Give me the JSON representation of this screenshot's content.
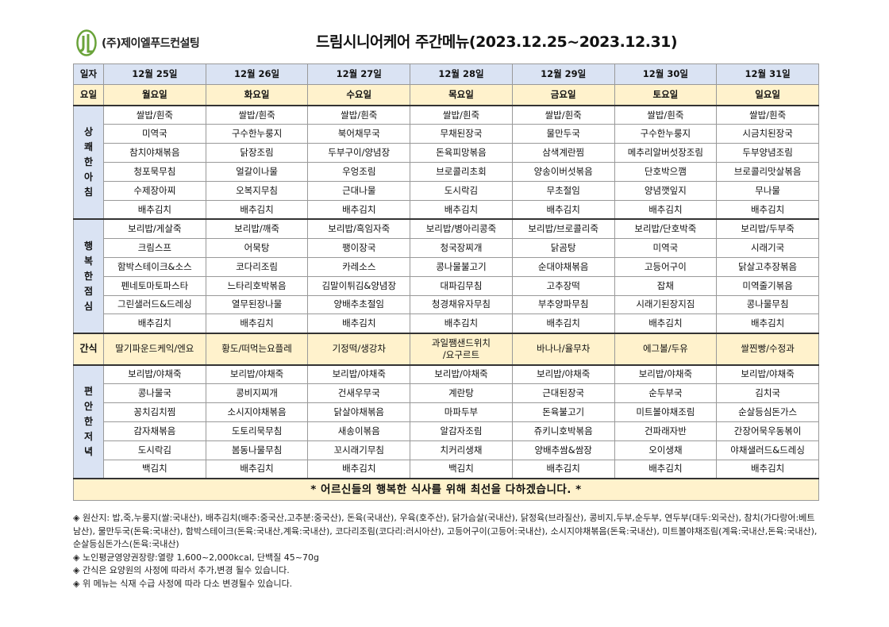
{
  "company": {
    "name": "(주)제이엘푸드컨설팅",
    "logo_color": "#6aa33a"
  },
  "title": "드림시니어케어 주간메뉴(2023.12.25~2023.12.31)",
  "header": {
    "date_label": "일자",
    "day_label": "요일",
    "dates": [
      "12월 25일",
      "12월 26일",
      "12월 27일",
      "12월 28일",
      "12월 29일",
      "12월 30일",
      "12월 31일"
    ],
    "days": [
      "월요일",
      "화요일",
      "수요일",
      "목요일",
      "금요일",
      "토요일",
      "일요일"
    ]
  },
  "breakfast": {
    "label": [
      "상",
      "쾌",
      "한",
      "아",
      "침"
    ],
    "rows": [
      [
        "쌀밥/흰죽",
        "쌀밥/흰죽",
        "쌀밥/흰죽",
        "쌀밥/흰죽",
        "쌀밥/흰죽",
        "쌀밥/흰죽",
        "쌀밥/흰죽"
      ],
      [
        "미역국",
        "구수한누룽지",
        "북어채무국",
        "무채된장국",
        "물만두국",
        "구수한누룽지",
        "시금치된장국"
      ],
      [
        "참치야채볶음",
        "닭장조림",
        "두부구이/양념장",
        "돈육피망볶음",
        "삼색계란찜",
        "메추리알버섯장조림",
        "두부양념조림"
      ],
      [
        "청포묵무침",
        "얼갈이나물",
        "우엉조림",
        "브로콜리초회",
        "양송이버섯볶음",
        "단호박으깸",
        "브로콜리맛살볶음"
      ],
      [
        "수제장아찌",
        "오복지무침",
        "근대나물",
        "도시락김",
        "무초절임",
        "양념깻잎지",
        "무나물"
      ],
      [
        "배추김치",
        "배추김치",
        "배추김치",
        "배추김치",
        "배추김치",
        "배추김치",
        "배추김치"
      ]
    ]
  },
  "lunch": {
    "label": [
      "행",
      "복",
      "한",
      "점",
      "심"
    ],
    "rows": [
      [
        "보리밥/게살죽",
        "보리밥/깨죽",
        "보리밥/흑임자죽",
        "보리밥/병아리콩죽",
        "보리밥/브로콜리죽",
        "보리밥/단호박죽",
        "보리밥/두부죽"
      ],
      [
        "크림스프",
        "어묵탕",
        "팽이장국",
        "청국장찌개",
        "닭곰탕",
        "미역국",
        "시래기국"
      ],
      [
        "함박스테이크&소스",
        "코다리조림",
        "카레소스",
        "콩나물불고기",
        "순대야채볶음",
        "고등어구이",
        "닭살고추장볶음"
      ],
      [
        "펜네토마토파스타",
        "느타리호박볶음",
        "김말이튀김&양념장",
        "대파김무침",
        "고추장떡",
        "잡채",
        "미역줄기볶음"
      ],
      [
        "그린샐러드&드레싱",
        "열무된장나물",
        "양배추초절임",
        "청경채유자무침",
        "부추양파무침",
        "시래기된장지짐",
        "콩나물무침"
      ],
      [
        "배추김치",
        "배추김치",
        "배추김치",
        "배추김치",
        "배추김치",
        "배추김치",
        "배추김치"
      ]
    ]
  },
  "snack": {
    "label": "간식",
    "items": [
      "딸기파운드케익/엔요",
      "황도/떠먹는요플레",
      "기정떡/생강차",
      "과일쨈샌드위치\n/요구르트",
      "바나나/율무차",
      "에그볼/두유",
      "쌀찐빵/수정과"
    ]
  },
  "dinner": {
    "label": [
      "편",
      "안",
      "한",
      "저",
      "녁"
    ],
    "rows": [
      [
        "보리밥/야채죽",
        "보리밥/야채죽",
        "보리밥/야채죽",
        "보리밥/야채죽",
        "보리밥/야채죽",
        "보리밥/야채죽",
        "보리밥/야채죽"
      ],
      [
        "콩나물국",
        "콩비지찌개",
        "건새우무국",
        "계란탕",
        "근대된장국",
        "순두부국",
        "김치국"
      ],
      [
        "꽁치김치찜",
        "소시지야채볶음",
        "닭살야채볶음",
        "마파두부",
        "돈육불고기",
        "미트볼야채조림",
        "순살등심돈가스"
      ],
      [
        "감자채볶음",
        "도토리묵무침",
        "새송이볶음",
        "알감자조림",
        "쥬키니호박볶음",
        "건파래자반",
        "간장어묵우동볶이"
      ],
      [
        "도시락김",
        "봄동나물무침",
        "꼬시래기무침",
        "치커리생채",
        "양배추쌈&쌈장",
        "오이생채",
        "야채샐러드&드레싱"
      ],
      [
        "백김치",
        "배추김치",
        "배추김치",
        "백김치",
        "배추김치",
        "배추김치",
        "배추김치"
      ]
    ]
  },
  "footer_message": "* 어르신들의 행복한 식사를 위해 최선을 다하겠습니다. *",
  "notes": [
    "◈ 원산지: 밥,죽,누룽지(쌀:국내산), 배추김치(배추:중국산,고추분:중국산), 돈육(국내산), 우육(호주산), 닭가슴살(국내산), 닭정육(브라질산), 콩비지,두부,순두부, 연두부(대두:외국산), 참치(가다랑어:베트남산), 물만두국(돈육:국내산), 함박스테이크(돈육:국내산,계육:국내산), 코다리조림(코다리:러시아산), 고등어구이(고등어:국내산), 소시지야채볶음(돈육:국내산), 미트볼야채조림(계육:국내산,돈육:국내산), 순살등심돈가스(돈육:국내산)",
    "◈ 노인평균영양권장량:열량 1,600~2,000kcal, 단백질 45~70g",
    "◈ 간식은 요양원의 사정에 따라서 추가,변경 될수 있습니다.",
    "◈ 위 메뉴는 식재 수급 사정에 따라 다소 변경될수 있습니다."
  ]
}
